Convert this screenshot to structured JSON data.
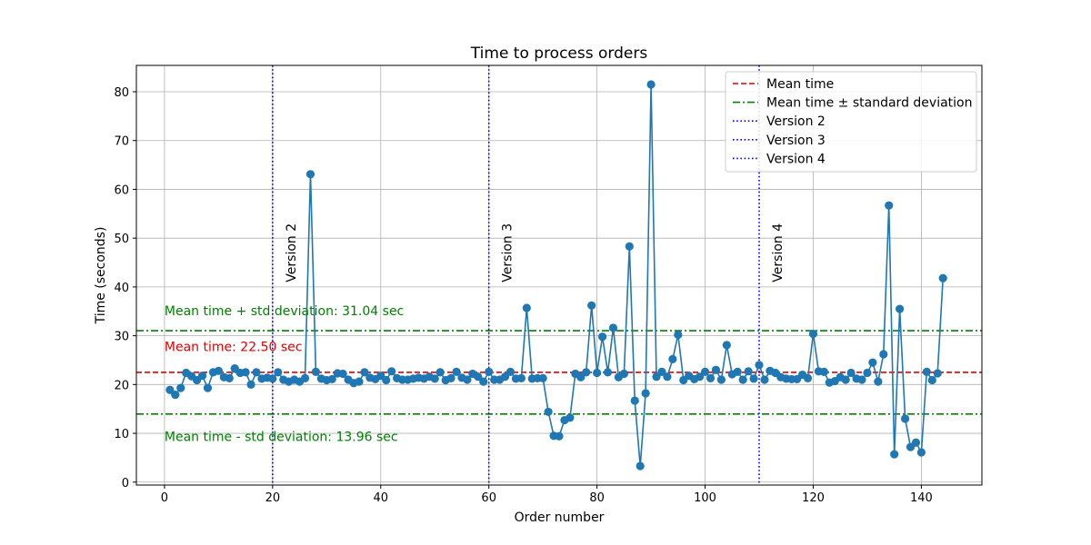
{
  "chart_data": {
    "type": "line",
    "title": "Time to process orders",
    "xlabel": "Order number",
    "ylabel": "Time (seconds)",
    "xlim": [
      -5.2,
      151.2
    ],
    "ylim": [
      -0.6,
      85.4
    ],
    "xticks": [
      0,
      20,
      40,
      60,
      80,
      100,
      120,
      140
    ],
    "yticks": [
      0,
      10,
      20,
      30,
      40,
      50,
      60,
      70,
      80
    ],
    "grid": true,
    "legend_position": "top-right",
    "series": [
      {
        "color": "#1f77b4",
        "marker": "circle",
        "x": [
          1,
          2,
          3,
          4,
          5,
          6,
          7,
          8,
          9,
          10,
          11,
          12,
          13,
          14,
          15,
          16,
          17,
          18,
          19,
          20,
          21,
          22,
          23,
          24,
          25,
          26,
          27,
          28,
          29,
          30,
          31,
          32,
          33,
          34,
          35,
          36,
          37,
          38,
          39,
          40,
          41,
          42,
          43,
          44,
          45,
          46,
          47,
          48,
          49,
          50,
          51,
          52,
          53,
          54,
          55,
          56,
          57,
          58,
          59,
          60,
          61,
          62,
          63,
          64,
          65,
          66,
          67,
          68,
          69,
          70,
          71,
          72,
          73,
          74,
          75,
          76,
          77,
          78,
          79,
          80,
          81,
          82,
          83,
          84,
          85,
          86,
          87,
          88,
          89,
          90,
          91,
          92,
          93,
          94,
          95,
          96,
          97,
          98,
          99,
          100,
          101,
          102,
          103,
          104,
          105,
          106,
          107,
          108,
          109,
          110,
          111,
          112,
          113,
          114,
          115,
          116,
          117,
          118,
          119,
          120,
          121,
          122,
          123,
          124,
          125,
          126,
          127,
          128,
          129,
          130,
          131,
          132,
          133,
          134,
          135,
          136,
          137,
          138,
          139,
          140,
          141,
          142,
          143,
          144
        ],
        "y": [
          18.9,
          17.9,
          19.3,
          22.4,
          21.7,
          20.9,
          21.8,
          19.3,
          22.5,
          22.8,
          21.5,
          21.3,
          23.3,
          22.4,
          22.5,
          20.0,
          22.5,
          21.2,
          21.4,
          21.2,
          22.5,
          21.0,
          20.6,
          21.0,
          20.6,
          21.3,
          63.1,
          22.6,
          21.2,
          20.9,
          21.1,
          22.3,
          22.2,
          21.0,
          20.3,
          20.6,
          22.5,
          21.4,
          21.1,
          21.8,
          20.9,
          22.7,
          21.3,
          21.0,
          21.0,
          21.2,
          21.4,
          21.2,
          21.6,
          21.2,
          22.5,
          20.9,
          21.3,
          22.6,
          21.4,
          21.0,
          22.2,
          21.6,
          20.6,
          22.6,
          21.0,
          21.0,
          21.6,
          22.6,
          21.2,
          21.3,
          35.7,
          21.2,
          21.3,
          21.3,
          14.4,
          9.5,
          9.4,
          12.7,
          13.2,
          22.2,
          21.5,
          22.5,
          36.2,
          22.4,
          29.8,
          22.5,
          31.6,
          21.5,
          22.2,
          48.3,
          16.7,
          3.3,
          18.2,
          81.5,
          21.6,
          22.6,
          21.6,
          25.2,
          30.2,
          20.9,
          21.8,
          21.1,
          21.6,
          22.6,
          21.3,
          23.0,
          21.0,
          28.1,
          22.1,
          22.6,
          21.0,
          22.7,
          21.2,
          24.0,
          21.0,
          22.8,
          22.4,
          21.5,
          21.2,
          21.1,
          21.1,
          22.0,
          21.3,
          30.4,
          22.7,
          22.6,
          20.4,
          20.7,
          21.5,
          21.0,
          22.4,
          21.2,
          21.0,
          22.4,
          24.5,
          20.6,
          26.2,
          56.7,
          5.7,
          35.5,
          13.0,
          7.2,
          8.1,
          6.1,
          22.6,
          20.9,
          22.3,
          41.8
        ]
      }
    ],
    "mean_time": 22.5,
    "std_upper": 31.04,
    "std_lower": 13.96,
    "version_lines": [
      20,
      60,
      110
    ],
    "legend": [
      {
        "label": "Mean time",
        "color": "#e00000",
        "style": "dashed"
      },
      {
        "label": "Mean time ± standard deviation",
        "color": "#008000",
        "style": "dashdot"
      },
      {
        "label": "Version 2",
        "color": "#0000ff",
        "style": "dotted"
      },
      {
        "label": "Version 3",
        "color": "#0000ff",
        "style": "dotted"
      },
      {
        "label": "Version 4",
        "color": "#0000ff",
        "style": "dotted"
      }
    ],
    "annotations": [
      {
        "text": "Mean time + std deviation: 31.04 sec",
        "color": "#008000",
        "x": 0,
        "y": 34.2
      },
      {
        "text": "Mean time: 22.50 sec",
        "color": "#e00000",
        "x": 0,
        "y": 26.9
      },
      {
        "text": "Mean time - std deviation: 13.96 sec",
        "color": "#008000",
        "x": 0,
        "y": 8.4
      },
      {
        "text": "Version 2",
        "color": "#000000",
        "x": 24.2,
        "y": 47,
        "rotate": -90
      },
      {
        "text": "Version 3",
        "color": "#000000",
        "x": 64.2,
        "y": 47,
        "rotate": -90
      },
      {
        "text": "Version 4",
        "color": "#000000",
        "x": 114.2,
        "y": 47,
        "rotate": -90
      }
    ]
  }
}
